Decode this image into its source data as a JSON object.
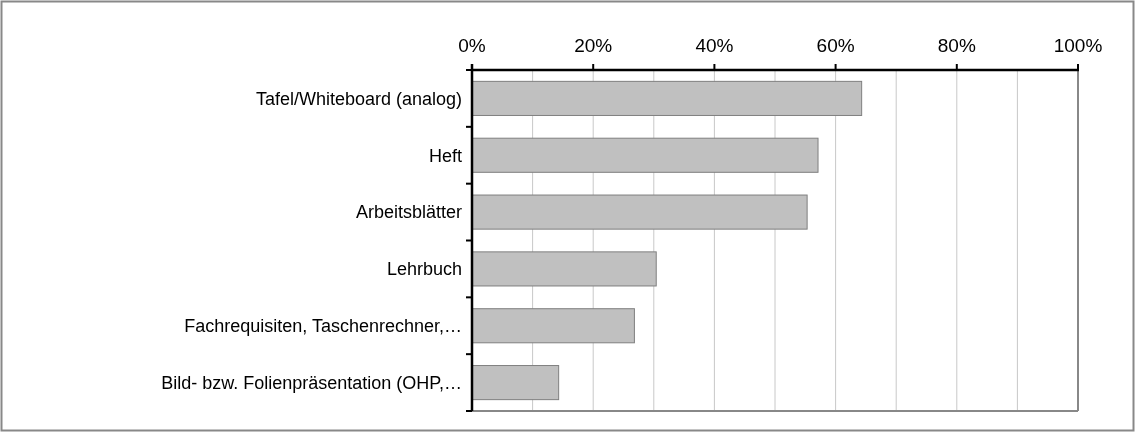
{
  "chart_data": {
    "type": "bar",
    "orientation": "horizontal",
    "categories": [
      "Tafel/Whiteboard (analog)",
      "Heft",
      "Arbeitsblätter",
      "Lehrbuch",
      "Fachrequisiten, Taschenrechner,…",
      "Bild- bzw. Folienpräsentation (OHP,…"
    ],
    "values": [
      64.3,
      57.1,
      55.3,
      30.4,
      26.8,
      14.3
    ],
    "color": "#c0c0c0",
    "xlim": [
      0,
      100
    ],
    "xticks": [
      {
        "value": 0,
        "label": "0%"
      },
      {
        "value": 10,
        "label": null
      },
      {
        "value": 20,
        "label": "20%"
      },
      {
        "value": 30,
        "label": null
      },
      {
        "value": 40,
        "label": "40%"
      },
      {
        "value": 50,
        "label": null
      },
      {
        "value": 60,
        "label": "60%"
      },
      {
        "value": 70,
        "label": null
      },
      {
        "value": 80,
        "label": "80%"
      },
      {
        "value": 90,
        "label": null
      },
      {
        "value": 100,
        "label": "100%"
      }
    ],
    "grid": "x"
  }
}
